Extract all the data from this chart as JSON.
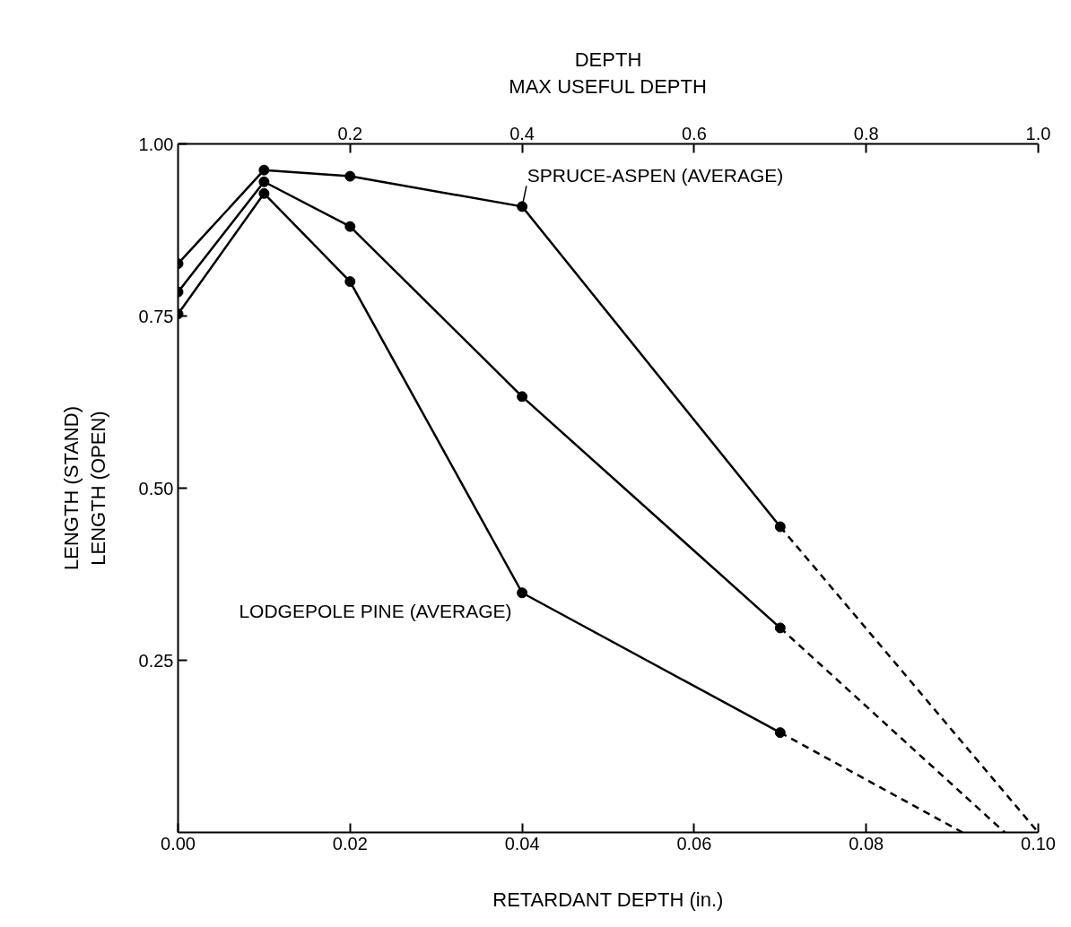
{
  "chart_data": {
    "type": "line",
    "xlabel": "RETARDANT DEPTH (in.)",
    "ylabel": "LENGTH (STAND)\nLENGTH (OPEN)",
    "x2label": "DEPTH\nMAX USEFUL DEPTH",
    "xlim": [
      0,
      0.1
    ],
    "ylim": [
      0,
      1.0
    ],
    "xticks": [
      {
        "value": 0,
        "label": "0.00"
      },
      {
        "value": 0.02,
        "label": "0.02"
      },
      {
        "value": 0.04,
        "label": "0.04"
      },
      {
        "value": 0.06,
        "label": "0.06"
      },
      {
        "value": 0.08,
        "label": "0.08"
      },
      {
        "value": 0.1,
        "label": "0.10"
      }
    ],
    "yticks": [
      {
        "value": 0.25,
        "label": "0.25"
      },
      {
        "value": 0.5,
        "label": "0.50"
      },
      {
        "value": 0.75,
        "label": "0.75"
      },
      {
        "value": 1.0,
        "label": "1.00"
      }
    ],
    "x2lim": [
      0,
      1.0
    ],
    "x2ticks": [
      0.2,
      0.4,
      0.6,
      0.8,
      {
        "value": 1.0,
        "label": "1.0"
      }
    ],
    "grid": false,
    "marker": "circle",
    "series": [
      {
        "name": "SPRUCE-ASPEN (AVERAGE)",
        "color": "#000000",
        "x": [
          0,
          0.01,
          0.02,
          0.04,
          0.07
        ],
        "values": [
          0.826,
          0.962,
          0.953,
          0.909,
          0.444
        ]
      },
      {
        "color": "#000000",
        "x": [
          0,
          0.01,
          0.02,
          0.04,
          0.07
        ],
        "values": [
          0.785,
          0.945,
          0.88,
          0.633,
          0.297
        ]
      },
      {
        "name": "LODGEPOLE PINE (AVERAGE)",
        "color": "#000000",
        "x": [
          0,
          0.01,
          0.02,
          0.04,
          0.07
        ],
        "values": [
          0.753,
          0.928,
          0.8,
          0.348,
          0.145
        ]
      },
      {
        "color": "#000000",
        "x": [
          0.07,
          0.1
        ],
        "values": [
          0.444,
          0
        ],
        "line_style": "dashed",
        "marker": "none"
      },
      {
        "color": "#000000",
        "x": [
          0.07,
          0.0961
        ],
        "values": [
          0.297,
          0
        ],
        "line_style": "dashed",
        "marker": "none"
      },
      {
        "color": "#000000",
        "x": [
          0.07,
          0.0912
        ],
        "values": [
          0.145,
          0
        ],
        "line_style": "dashed",
        "marker": "none"
      }
    ]
  }
}
